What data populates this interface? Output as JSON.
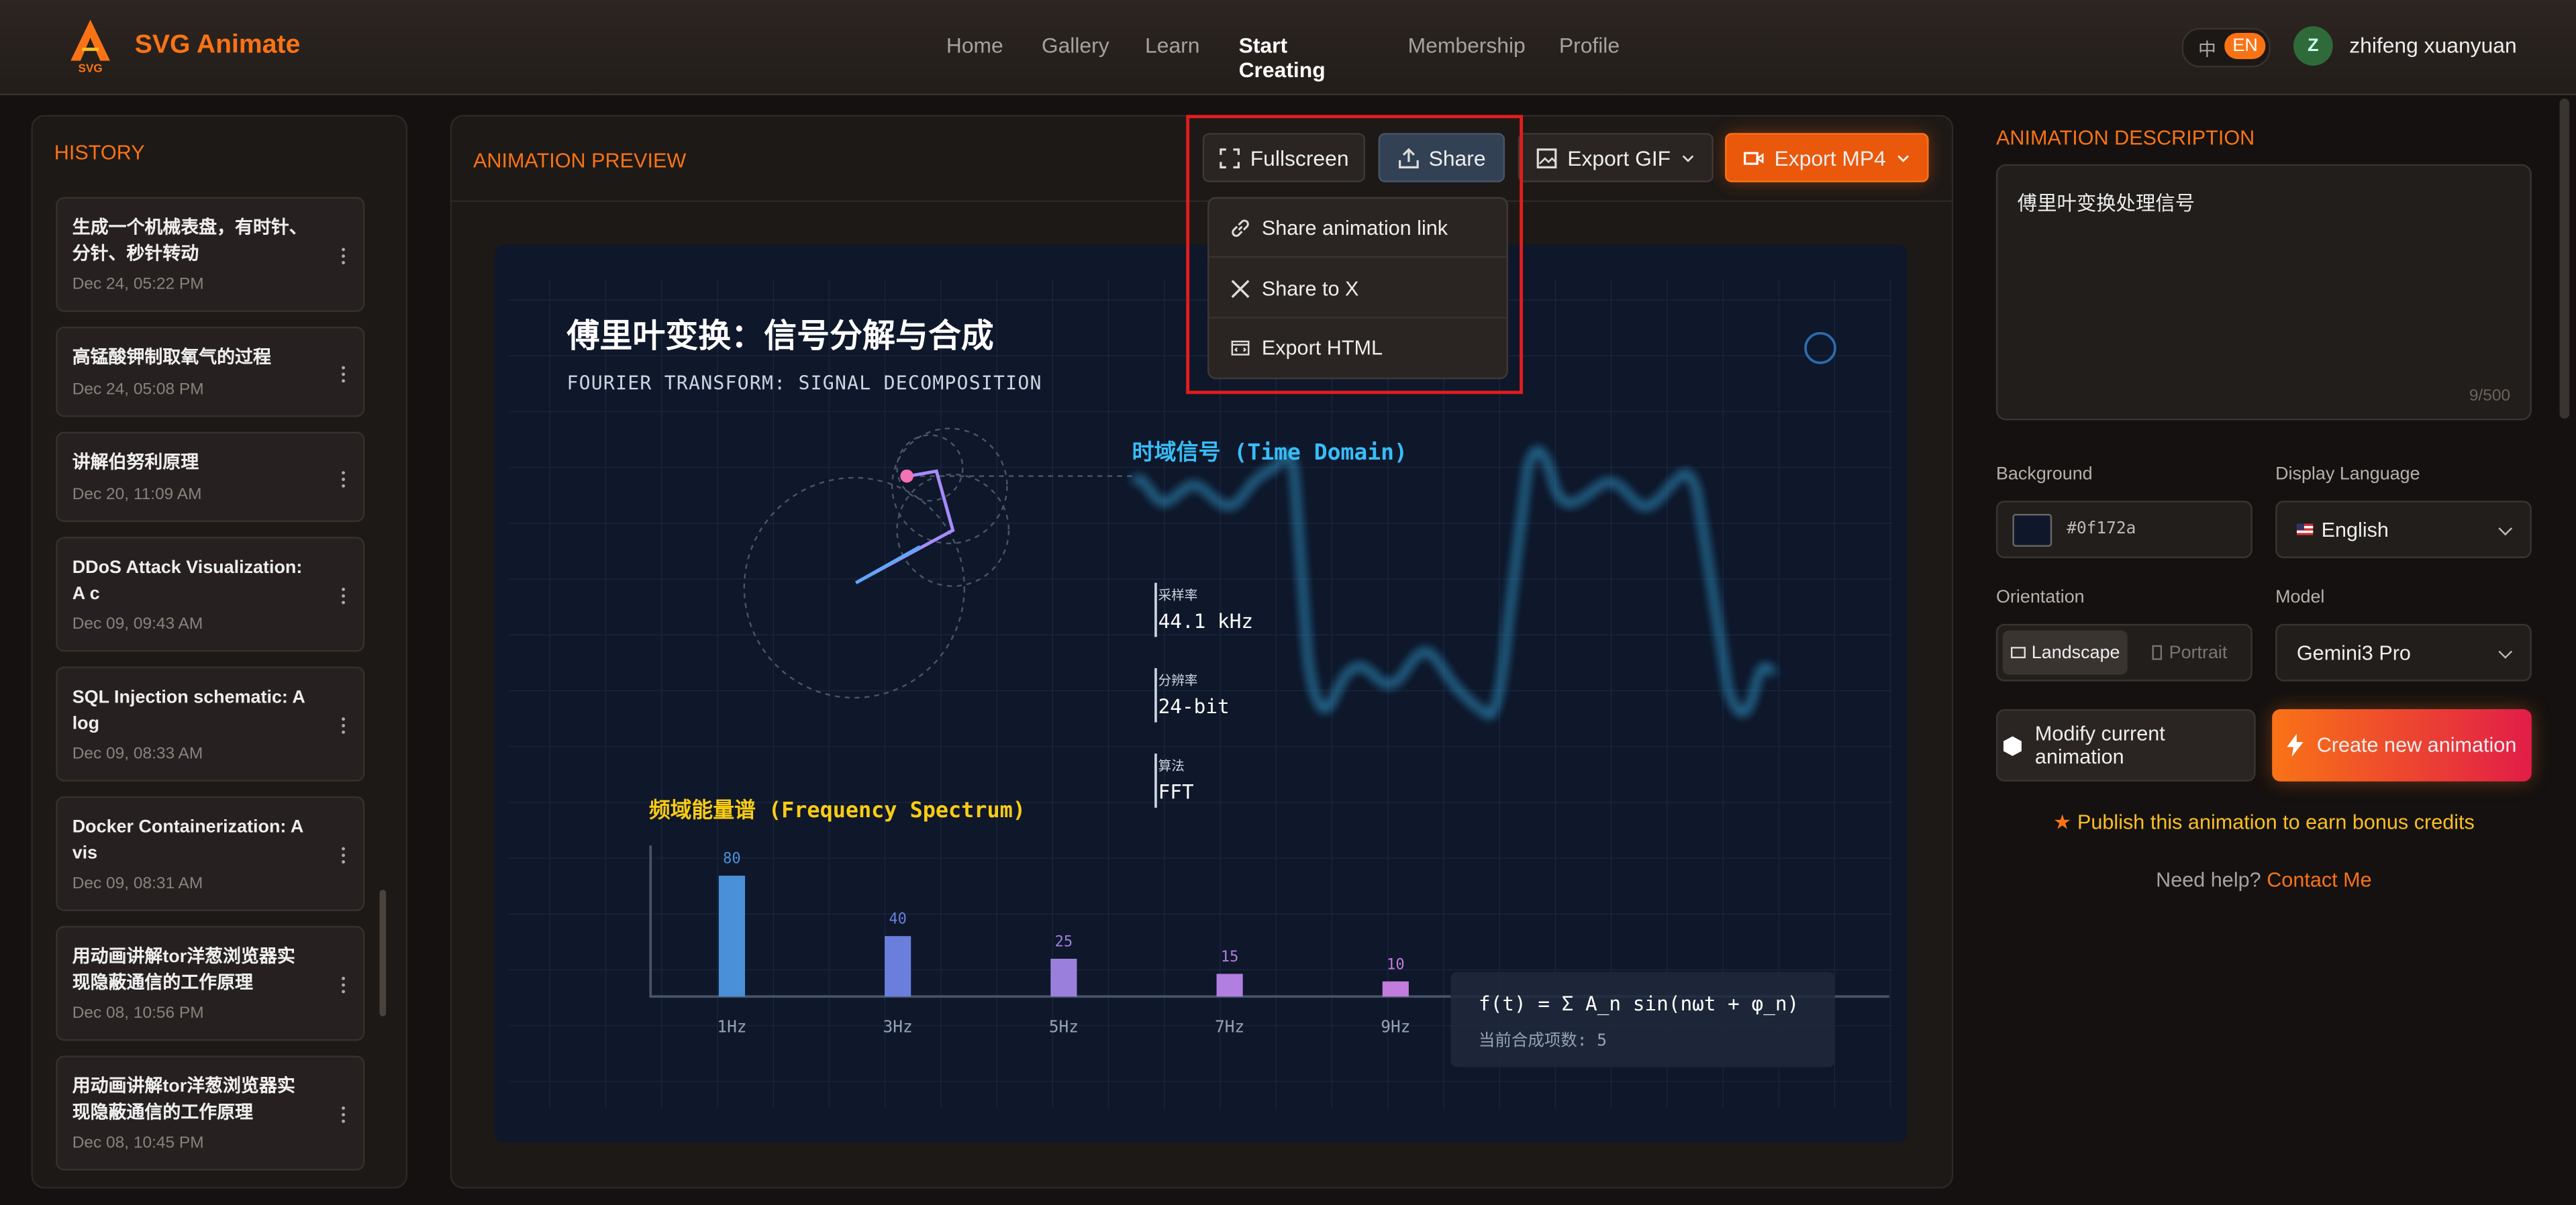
{
  "header": {
    "logo_text": "SVG",
    "brand": "SVG Animate",
    "nav": [
      "Home",
      "Gallery",
      "Learn",
      "Start Creating",
      "Membership",
      "Profile"
    ],
    "lang": [
      "中",
      "EN"
    ],
    "avatar": "Z",
    "user": "zhifeng xuanyuan"
  },
  "history": {
    "title": "HISTORY",
    "items": [
      {
        "title": "生成一个机械表盘，有时针、分针、秒针转动",
        "date": "Dec 24, 05:22 PM"
      },
      {
        "title": "高锰酸钾制取氧气的过程",
        "date": "Dec 24, 05:08 PM"
      },
      {
        "title": "讲解伯努利原理",
        "date": "Dec 20, 11:09 AM"
      },
      {
        "title": "DDoS Attack Visualization: A c",
        "date": "Dec 09, 09:43 AM"
      },
      {
        "title": "SQL Injection schematic: A log",
        "date": "Dec 09, 08:33 AM"
      },
      {
        "title": "Docker Containerization: A vis",
        "date": "Dec 09, 08:31 AM"
      },
      {
        "title": "用动画讲解tor洋葱浏览器实现隐蔽通信的工作原理",
        "date": "Dec 08, 10:56 PM"
      },
      {
        "title": "用动画讲解tor洋葱浏览器实现隐蔽通信的工作原理",
        "date": "Dec 08, 10:45 PM"
      }
    ]
  },
  "preview": {
    "title": "ANIMATION PREVIEW",
    "buttons": [
      "Fullscreen",
      "Share",
      "Export GIF",
      "Export MP4"
    ],
    "share_menu": [
      "Share animation link",
      "Share to X",
      "Export HTML"
    ],
    "animation": {
      "title": "傅里叶变换：信号分解与合成",
      "subtitle": "FOURIER TRANSFORM: SIGNAL DECOMPOSITION",
      "time_domain_label": "时域信号 (Time Domain)",
      "stats": [
        {
          "label": "采样率",
          "value": "44.1 kHz"
        },
        {
          "label": "分辨率",
          "value": "24-bit"
        },
        {
          "label": "算法",
          "value": "FFT"
        }
      ],
      "chart_data": {
        "type": "bar",
        "title": "频域能量谱 (Frequency Spectrum)",
        "categories": [
          "1Hz",
          "3Hz",
          "5Hz",
          "7Hz",
          "9Hz"
        ],
        "values": [
          80,
          40,
          25,
          15,
          10
        ],
        "colors": [
          "#4a90d9",
          "#6a7fdc",
          "#9a80dc",
          "#b07fe0",
          "#c27ddc"
        ],
        "ylim": [
          0,
          100
        ]
      },
      "formula": "f(t) = Σ A_n sin(nωt + φ_n)",
      "formula_note": "当前合成项数: 5"
    }
  },
  "settings": {
    "title": "ANIMATION DESCRIPTION",
    "description": "傅里叶变换处理信号",
    "counter": "9/500",
    "background_label": "Background",
    "background": "#0f172a",
    "language_label": "Display Language",
    "language": "English",
    "orientation_label": "Orientation",
    "orientations": [
      "Landscape",
      "Portrait"
    ],
    "model_label": "Model",
    "model": "Gemini3 Pro",
    "modify": "Modify current animation",
    "create": "Create new animation",
    "publish": "Publish this animation to earn bonus credits",
    "help": "Need help?",
    "contact": "Contact Me"
  }
}
